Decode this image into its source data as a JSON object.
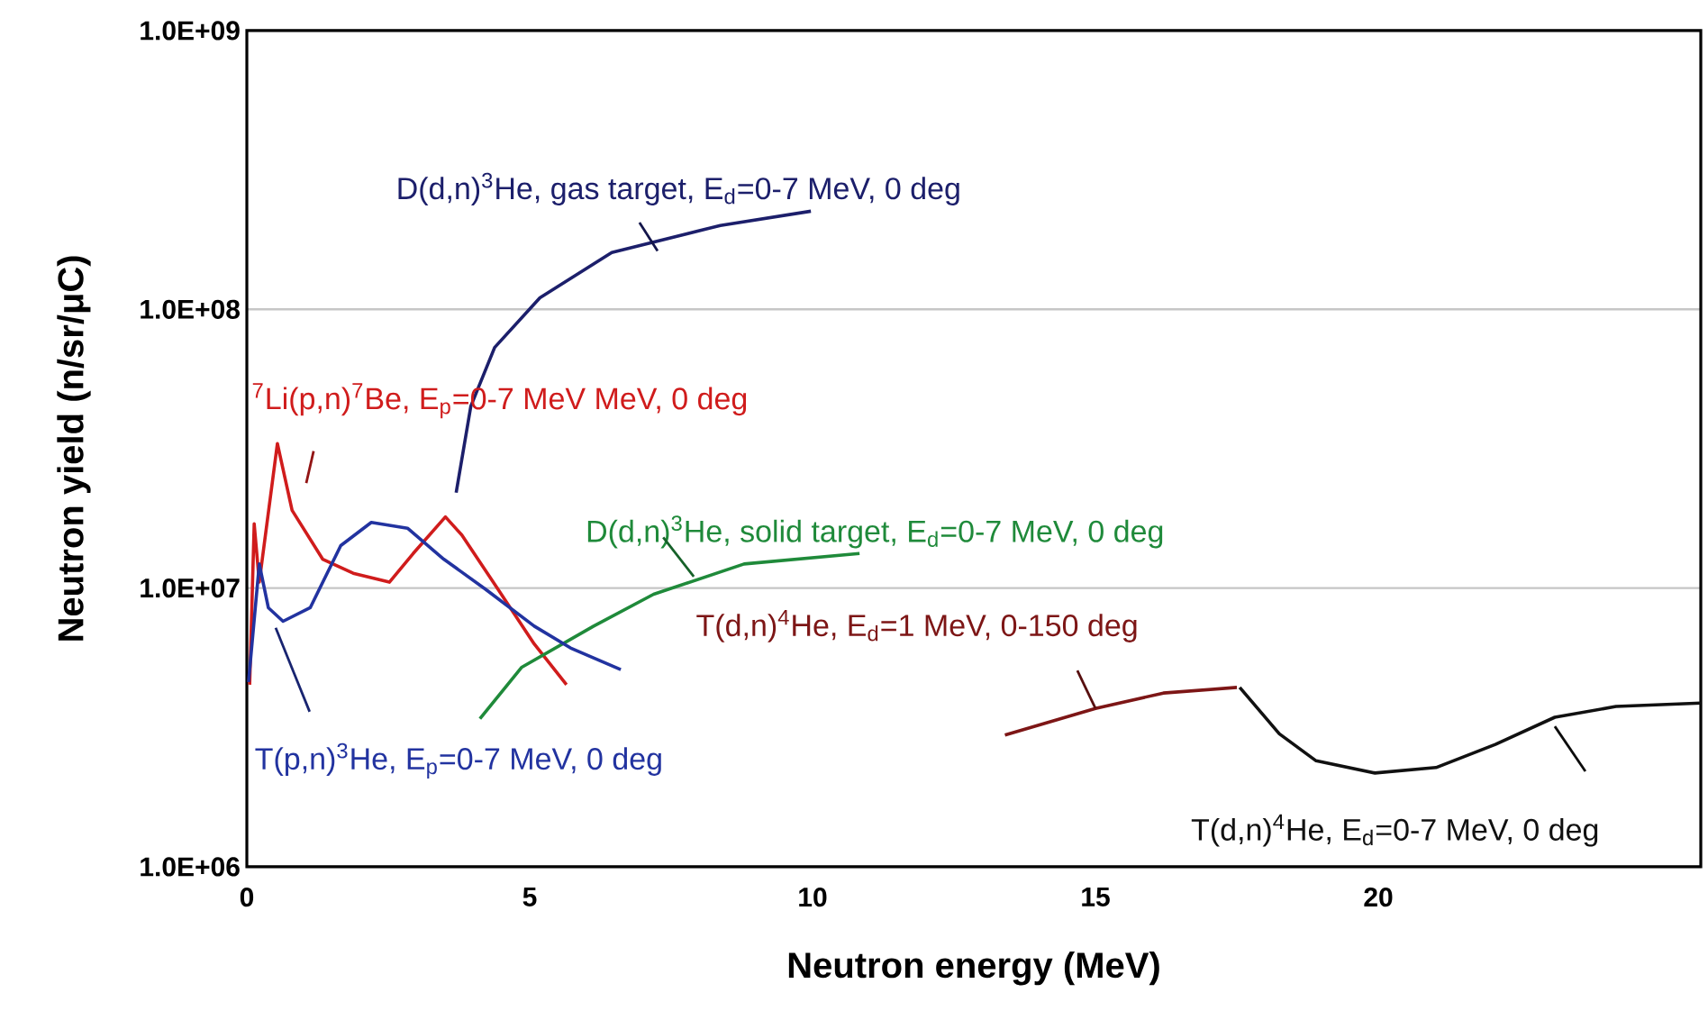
{
  "chart_data": {
    "type": "line",
    "xlabel": "Neutron energy (MeV)",
    "ylabel": "Neutron yield (n/sr/μC)",
    "log": "y",
    "grid": "y",
    "marker": "none",
    "xlim": [
      0,
      25.7
    ],
    "xticks": [
      0,
      5,
      10,
      15,
      20
    ],
    "ylim": [
      1000000,
      1000000000
    ],
    "yticks": [
      {
        "value": 1000000,
        "label": "1.0E+06"
      },
      {
        "value": 10000000,
        "label": "1.0E+07"
      },
      {
        "value": 100000000,
        "label": "1.0E+08"
      },
      {
        "value": 1000000000,
        "label": "1.0E+09"
      }
    ],
    "series": [
      {
        "name": "D(d,n)$^{3}$He, gas target, E$_{d}$=0-7 MeV, 0 deg",
        "color": "#1c1f6b",
        "x": [
          3.7,
          3.96,
          4.38,
          5.18,
          6.45,
          8.37,
          9.97
        ],
        "values": [
          22000000,
          45000000,
          73000000,
          110000000,
          160000000,
          200000000,
          225000000
        ]
      },
      {
        "name": "$^{7}$Li(p,n)$^{7}$Be, E$_{p}$=0-7 MeV MeV, 0 deg",
        "color": "#d01c1c",
        "x": [
          0.05,
          0.13,
          0.22,
          0.54,
          0.8,
          1.34,
          1.88,
          2.52,
          2.94,
          3.51,
          3.8,
          4.44,
          5.08,
          5.65
        ],
        "values": [
          4500000,
          17000000,
          10500000,
          33000000,
          19000000,
          12700000,
          11300000,
          10500000,
          13300000,
          18000000,
          15500000,
          9900000,
          6300000,
          4500000
        ]
      },
      {
        "name": "D(d,n)$^{3}$He, solid target, E$_{d}$=0-7 MeV, 0 deg",
        "color": "#1f8a3a",
        "x": [
          4.12,
          4.86,
          6.13,
          7.19,
          8.79,
          10.83
        ],
        "values": [
          3400000,
          5200000,
          7300000,
          9500000,
          12200000,
          13300000
        ]
      },
      {
        "name": "T(p,n)$^{3}$He, E$_{p}$=0-7 MeV, 0 deg",
        "color": "#2233a0",
        "x": [
          0.03,
          0.22,
          0.38,
          0.64,
          1.12,
          1.66,
          2.2,
          2.84,
          3.48,
          4.22,
          5.08,
          5.72,
          6.61
        ],
        "values": [
          4600000,
          12200000,
          8500000,
          7600000,
          8500000,
          14200000,
          17200000,
          16400000,
          12700000,
          9900000,
          7300000,
          6100000,
          5100000
        ]
      },
      {
        "name": "T(d,n)$^{4}$He, E$_{d}$=1 MeV, 0-150 deg",
        "color": "#7d1616",
        "x": [
          13.4,
          15.0,
          16.2,
          17.5
        ],
        "values": [
          2970000,
          3700000,
          4200000,
          4400000
        ]
      },
      {
        "name": "T(d,n)$^{4}$He, E$_{d}$=0-7 MeV, 0 deg",
        "color": "#111111",
        "x": [
          17.55,
          18.25,
          18.9,
          19.94,
          21.02,
          22.07,
          23.12,
          24.2,
          25.7
        ],
        "values": [
          4400000,
          3000000,
          2400000,
          2170000,
          2270000,
          2750000,
          3440000,
          3760000,
          3870000
        ]
      }
    ]
  }
}
